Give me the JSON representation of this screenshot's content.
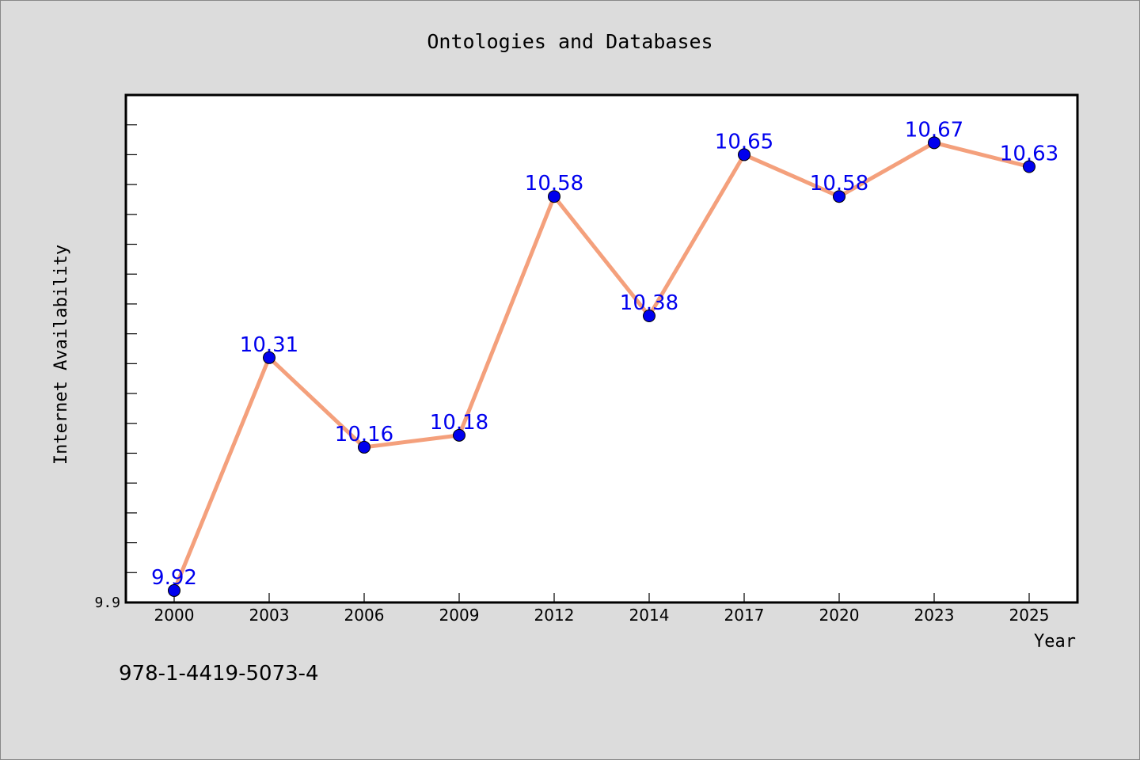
{
  "chart_data": {
    "type": "line",
    "title": "Ontologies and Databases",
    "xlabel": "Year",
    "ylabel": "Internet Availability",
    "categories": [
      "2000",
      "2003",
      "2006",
      "2009",
      "2012",
      "2014",
      "2017",
      "2020",
      "2023",
      "2025"
    ],
    "series": [
      {
        "values": [
          9.92,
          10.31,
          10.16,
          10.18,
          10.58,
          10.38,
          10.65,
          10.58,
          10.67,
          10.63
        ],
        "labels": [
          "9.92",
          "10.31",
          "10.16",
          "10.18",
          "10.58",
          "10.38",
          "10.65",
          "10.58",
          "10.67",
          "10.63"
        ]
      }
    ],
    "ylim": [
      9.9,
      10.75
    ],
    "ytick_labels": [
      "9.9"
    ],
    "grid": false,
    "colors": {
      "line": "#f4a07c",
      "marker": "#0000ee",
      "label": "#0000ee",
      "background": "#dcdcdc",
      "plot_bg": "#ffffff"
    }
  },
  "footer": {
    "isbn": "978-1-4419-5073-4"
  }
}
